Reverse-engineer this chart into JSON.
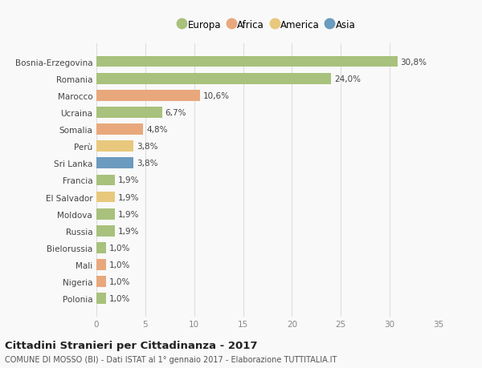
{
  "categories": [
    "Bosnia-Erzegovina",
    "Romania",
    "Marocco",
    "Ucraina",
    "Somalia",
    "Perù",
    "Sri Lanka",
    "Francia",
    "El Salvador",
    "Moldova",
    "Russia",
    "Bielorussia",
    "Mali",
    "Nigeria",
    "Polonia"
  ],
  "values": [
    30.8,
    24.0,
    10.6,
    6.7,
    4.8,
    3.8,
    3.8,
    1.9,
    1.9,
    1.9,
    1.9,
    1.0,
    1.0,
    1.0,
    1.0
  ],
  "labels": [
    "30,8%",
    "24,0%",
    "10,6%",
    "6,7%",
    "4,8%",
    "3,8%",
    "3,8%",
    "1,9%",
    "1,9%",
    "1,9%",
    "1,9%",
    "1,0%",
    "1,0%",
    "1,0%",
    "1,0%"
  ],
  "colors": [
    "#a8c17c",
    "#a8c17c",
    "#e8a87c",
    "#a8c17c",
    "#e8a87c",
    "#e8c87c",
    "#6b9bbf",
    "#a8c17c",
    "#e8c87c",
    "#a8c17c",
    "#a8c17c",
    "#a8c17c",
    "#e8a87c",
    "#e8a87c",
    "#a8c17c"
  ],
  "legend": {
    "Europa": "#a8c17c",
    "Africa": "#e8a87c",
    "America": "#e8c87c",
    "Asia": "#6b9bbf"
  },
  "xlim": [
    0,
    35
  ],
  "xticks": [
    0,
    5,
    10,
    15,
    20,
    25,
    30,
    35
  ],
  "title": "Cittadini Stranieri per Cittadinanza - 2017",
  "subtitle": "COMUNE DI MOSSO (BI) - Dati ISTAT al 1° gennaio 2017 - Elaborazione TUTTITALIA.IT",
  "bg_color": "#f9f9f9",
  "grid_color": "#dddddd",
  "bar_height": 0.65
}
